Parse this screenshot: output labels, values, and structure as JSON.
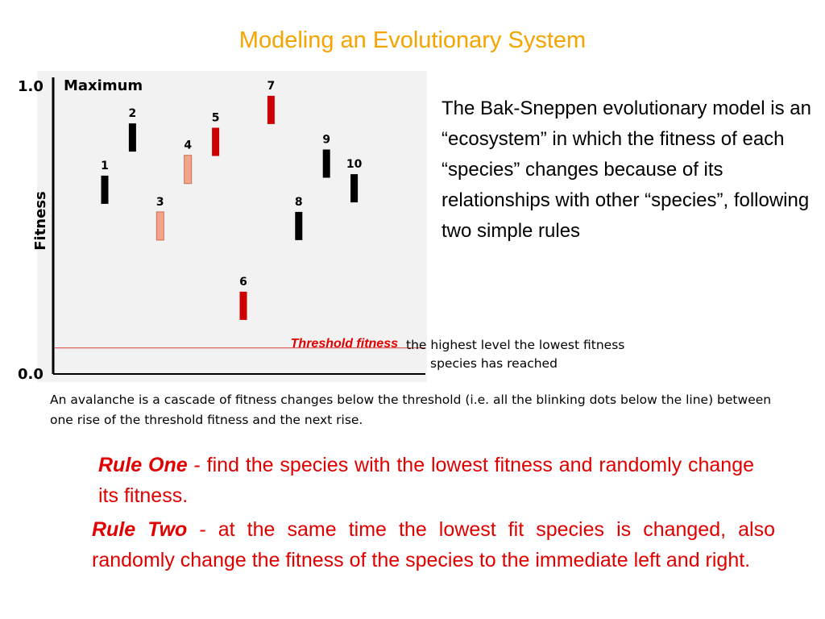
{
  "slide": {
    "title": "Modeling an Evolutionary System"
  },
  "figure": {
    "y_axis_label": "Fitness",
    "y_top_label": "1.0",
    "y_bottom_label": "0.0",
    "maximum_label": "Maximum",
    "threshold_label": "Threshold fitness",
    "threshold_description_line1": "the highest level the lowest fitness",
    "threshold_description_line2": "species has reached",
    "threshold_value": 0.09,
    "colors": {
      "black": "#000000",
      "red": "#cc0000",
      "salmon": "#f2a58a",
      "threshold_line": "#e06060"
    },
    "species": [
      {
        "label": "1",
        "fitness": 0.635,
        "color": "black"
      },
      {
        "label": "2",
        "fitness": 0.815,
        "color": "black"
      },
      {
        "label": "3",
        "fitness": 0.51,
        "color": "salmon"
      },
      {
        "label": "4",
        "fitness": 0.705,
        "color": "salmon"
      },
      {
        "label": "5",
        "fitness": 0.8,
        "color": "red"
      },
      {
        "label": "6",
        "fitness": 0.235,
        "color": "red"
      },
      {
        "label": "7",
        "fitness": 0.91,
        "color": "red"
      },
      {
        "label": "8",
        "fitness": 0.51,
        "color": "black"
      },
      {
        "label": "9",
        "fitness": 0.725,
        "color": "black"
      },
      {
        "label": "10",
        "fitness": 0.64,
        "color": "black"
      }
    ]
  },
  "description": "The Bak-Sneppen evolutionary model is an “ecosystem” in which the fitness of each “species” changes because of its relationships with other “species”, following two simple rules",
  "avalanche": "An avalanche is a cascade of fitness changes below the threshold (i.e. all the blinking dots below the line) between one rise of the threshold fitness and the next rise.",
  "rules": {
    "one": {
      "name": "Rule One",
      "text": " - find the species with the lowest fitness and randomly change its fitness."
    },
    "two": {
      "name": "Rule Two",
      "text": " - at the same time the lowest fit species is changed, also randomly change the fitness of the species to the immediate left and right."
    }
  }
}
